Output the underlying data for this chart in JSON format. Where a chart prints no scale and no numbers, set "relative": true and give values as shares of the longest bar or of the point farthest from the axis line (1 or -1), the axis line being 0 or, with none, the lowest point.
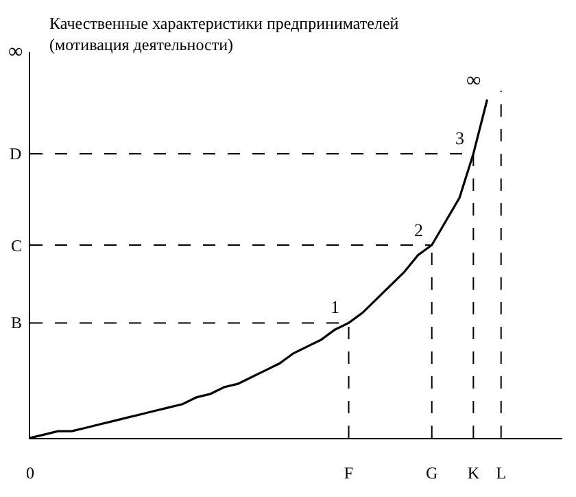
{
  "chart_data": {
    "type": "line",
    "relative": true,
    "ylabel": "Качественные характеристики предпринимателей\n(мотивация деятельности)",
    "categories": [
      "0",
      null,
      null,
      null,
      null,
      null,
      null,
      null,
      null,
      null,
      null,
      null,
      null,
      null,
      null,
      null,
      null,
      null,
      null,
      null,
      null,
      null,
      null,
      "F",
      null,
      null,
      null,
      null,
      null,
      "G",
      null,
      null,
      "K",
      null,
      "L"
    ],
    "series": [
      {
        "color": "#000000",
        "values": [
          0,
          0.01,
          0.02,
          0.02,
          0.03,
          0.04,
          0.05,
          0.06,
          0.07,
          0.08,
          0.09,
          0.1,
          0.12,
          0.13,
          0.15,
          0.16,
          0.18,
          0.2,
          0.22,
          0.25,
          0.27,
          0.29,
          0.32,
          0.34,
          0.37,
          0.41,
          0.45,
          0.49,
          0.54,
          0.57,
          0.64,
          0.71,
          0.84,
          1,
          null
        ]
      }
    ],
    "line_style": "solid",
    "marker": "none",
    "legend": false,
    "ref_lines": [
      {
        "axis": "y",
        "value": 0.34,
        "label": "B",
        "line_style": "dashed",
        "color": "#000000"
      },
      {
        "axis": "y",
        "value": 0.57,
        "label": "C",
        "line_style": "dashed",
        "color": "#000000"
      },
      {
        "axis": "y",
        "value": 0.84,
        "label": "D",
        "line_style": "dashed",
        "color": "#000000"
      },
      {
        "axis": "x",
        "value": "F",
        "line_style": "dashed",
        "color": "#000000"
      },
      {
        "axis": "x",
        "value": "G",
        "line_style": "dashed",
        "color": "#000000"
      },
      {
        "axis": "x",
        "value": "K",
        "line_style": "dashed",
        "color": "#000000"
      },
      {
        "axis": "x",
        "value": "L",
        "line_style": "dashed",
        "color": "#000000"
      }
    ],
    "annotations": [
      "∞",
      {
        "text": "1",
        "x": "F",
        "y": 0.34
      },
      {
        "text": "2",
        "x": "G",
        "y": 0.57
      },
      {
        "text": "3",
        "x": "K",
        "y": 0.84
      },
      "∞"
    ]
  }
}
